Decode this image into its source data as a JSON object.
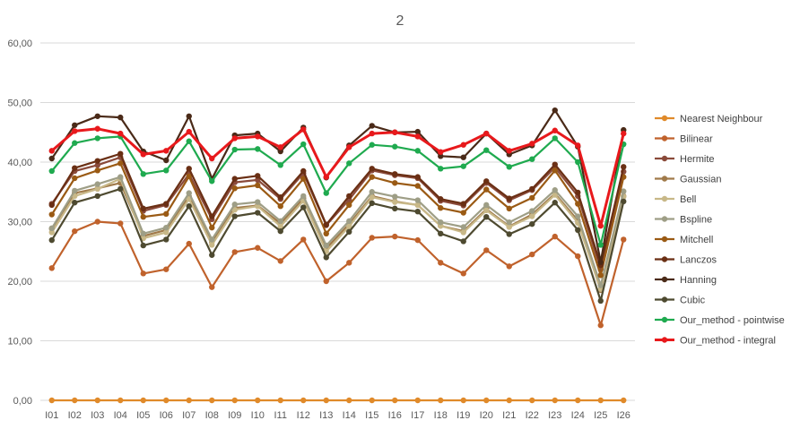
{
  "chart_data": {
    "type": "line",
    "title": "2",
    "xlabel": "",
    "ylabel": "",
    "ylim": [
      0,
      60
    ],
    "yticks": [
      "0,00",
      "10,00",
      "20,00",
      "30,00",
      "40,00",
      "50,00",
      "60,00"
    ],
    "ytick_values": [
      0,
      10,
      20,
      30,
      40,
      50,
      60
    ],
    "grid": "horizontal",
    "legend_position": "right",
    "categories": [
      "I01",
      "I02",
      "I03",
      "I04",
      "I05",
      "I06",
      "I07",
      "I08",
      "I09",
      "I10",
      "I11",
      "I12",
      "I13",
      "I14",
      "I15",
      "I16",
      "I17",
      "I18",
      "I19",
      "I20",
      "I21",
      "I22",
      "I23",
      "I24",
      "I25",
      "I26"
    ],
    "series": [
      {
        "name": "Nearest Neighbour",
        "color": "#e08a2a",
        "values": [
          0,
          0,
          0,
          0,
          0,
          0,
          0,
          0,
          0,
          0,
          0,
          0,
          0,
          0,
          0,
          0,
          0,
          0,
          0,
          0,
          0,
          0,
          0,
          0,
          0,
          0
        ]
      },
      {
        "name": "Bilinear",
        "color": "#c0622c",
        "values": [
          22.2,
          28.4,
          30.0,
          29.7,
          21.3,
          22.0,
          26.3,
          19.0,
          24.9,
          25.6,
          23.4,
          27.0,
          20.0,
          23.1,
          27.3,
          27.5,
          26.9,
          23.1,
          21.3,
          25.2,
          22.5,
          24.5,
          27.5,
          24.2,
          12.6,
          27.0
        ]
      },
      {
        "name": "Hermite",
        "color": "#8a4a3a",
        "values": [
          33.0,
          38.5,
          39.5,
          40.8,
          31.8,
          32.8,
          38.0,
          30.4,
          36.6,
          37.0,
          33.8,
          38.1,
          29.4,
          33.7,
          38.6,
          37.8,
          37.3,
          33.5,
          32.7,
          36.5,
          33.6,
          35.3,
          39.1,
          34.3,
          22.0,
          38.4
        ]
      },
      {
        "name": "Gaussian",
        "color": "#a07a4a",
        "values": [
          28.8,
          34.8,
          35.6,
          36.5,
          27.6,
          28.6,
          34.2,
          26.6,
          32.3,
          32.7,
          29.7,
          33.9,
          25.5,
          29.6,
          34.3,
          33.4,
          32.8,
          29.3,
          28.4,
          32.1,
          29.2,
          31.2,
          34.7,
          30.2,
          18.5,
          34.3
        ]
      },
      {
        "name": "Bell",
        "color": "#c8b888",
        "values": [
          28.2,
          34.3,
          35.5,
          37.2,
          27.2,
          28.2,
          33.8,
          26.1,
          32.0,
          32.6,
          29.2,
          33.5,
          25.0,
          29.2,
          34.1,
          33.3,
          32.8,
          29.3,
          28.2,
          31.9,
          29.1,
          30.9,
          34.5,
          29.8,
          18.7,
          34.2
        ]
      },
      {
        "name": "Bspline",
        "color": "#9e9e86",
        "values": [
          28.9,
          35.2,
          36.3,
          37.5,
          28.0,
          29.0,
          34.8,
          27.0,
          32.9,
          33.3,
          30.1,
          34.3,
          26.0,
          30.1,
          35.0,
          34.2,
          33.6,
          29.9,
          29.1,
          32.8,
          29.9,
          31.8,
          35.3,
          30.9,
          19.3,
          35.1
        ]
      },
      {
        "name": "Mitchell",
        "color": "#9a5a14",
        "values": [
          31.2,
          37.3,
          38.6,
          39.8,
          30.8,
          31.3,
          37.6,
          29.0,
          35.6,
          36.1,
          32.6,
          37.2,
          28.0,
          32.8,
          37.5,
          36.5,
          36.0,
          32.3,
          31.5,
          35.4,
          32.2,
          34.0,
          38.6,
          33.0,
          21.0,
          37.5
        ]
      },
      {
        "name": "Lanczos",
        "color": "#6a2f14",
        "values": [
          32.8,
          39.0,
          40.2,
          41.4,
          32.2,
          33.0,
          38.9,
          30.9,
          37.2,
          37.7,
          34.1,
          38.5,
          29.5,
          34.3,
          38.9,
          38.0,
          37.5,
          33.8,
          33.0,
          36.8,
          33.9,
          35.5,
          39.6,
          34.9,
          22.7,
          39.2
        ]
      },
      {
        "name": "Hanning",
        "color": "#4a2a18",
        "values": [
          40.6,
          46.2,
          47.7,
          47.5,
          41.8,
          40.3,
          47.7,
          37.2,
          44.5,
          44.8,
          41.8,
          45.8,
          37.4,
          42.8,
          46.1,
          45.0,
          45.1,
          41.0,
          40.8,
          44.8,
          41.3,
          42.8,
          48.7,
          42.6,
          23.2,
          45.4
        ]
      },
      {
        "name": "Cubic",
        "color": "#4e4a30",
        "values": [
          26.9,
          33.2,
          34.3,
          35.5,
          26.0,
          27.0,
          32.6,
          24.4,
          30.9,
          31.5,
          28.4,
          32.4,
          24.0,
          28.3,
          33.1,
          32.2,
          31.7,
          28.0,
          26.7,
          30.8,
          27.9,
          29.6,
          33.2,
          28.6,
          16.7,
          33.4
        ]
      },
      {
        "name": "Our_method - pointwise",
        "color": "#1faa4f",
        "values": [
          38.5,
          43.2,
          44.0,
          44.3,
          38.0,
          38.6,
          43.5,
          36.8,
          42.1,
          42.2,
          39.5,
          43.0,
          34.8,
          39.8,
          42.9,
          42.6,
          41.9,
          38.9,
          39.3,
          42.0,
          39.2,
          40.5,
          44.0,
          40.0,
          26.1,
          43.0
        ]
      },
      {
        "name": "Our_method - integral",
        "color": "#e8191c",
        "values": [
          41.9,
          45.2,
          45.6,
          44.8,
          41.3,
          41.9,
          45.1,
          40.6,
          44.0,
          44.3,
          42.5,
          45.5,
          37.5,
          42.5,
          44.8,
          45.0,
          44.3,
          41.7,
          42.9,
          44.8,
          41.9,
          43.1,
          45.3,
          42.8,
          29.3,
          44.8
        ]
      }
    ]
  }
}
